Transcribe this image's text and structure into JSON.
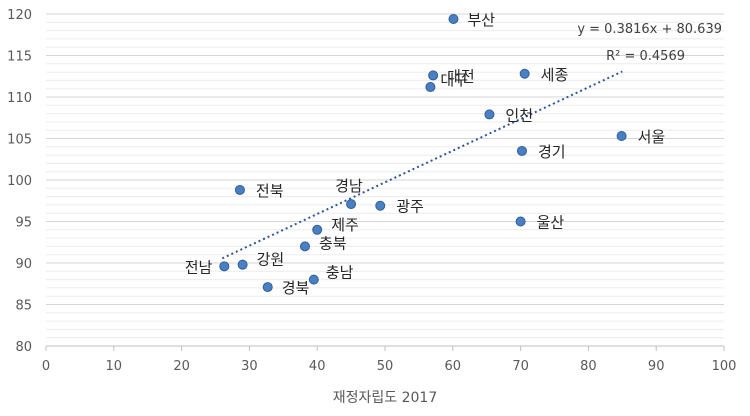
{
  "chart_data": {
    "type": "scatter",
    "xlabel": "재정자립도 2017",
    "ylabel": "",
    "xlim": [
      0,
      100
    ],
    "ylim": [
      80,
      120
    ],
    "x_ticks": [
      0,
      10,
      20,
      30,
      40,
      50,
      60,
      70,
      80,
      90,
      100
    ],
    "y_ticks": [
      80,
      85,
      90,
      95,
      100,
      105,
      110,
      115,
      120
    ],
    "grid": true,
    "colors": {
      "point": "#4a7fc1",
      "trendline": "#2f5597"
    },
    "points": [
      {
        "label": "부산",
        "x": 60.1,
        "y": 119.4
      },
      {
        "label": "대전",
        "x": 57.1,
        "y": 112.6
      },
      {
        "label": "대구",
        "x": 56.7,
        "y": 111.2
      },
      {
        "label": "세종",
        "x": 70.6,
        "y": 112.8
      },
      {
        "label": "인천",
        "x": 65.4,
        "y": 107.9
      },
      {
        "label": "서울",
        "x": 84.9,
        "y": 105.3
      },
      {
        "label": "경기",
        "x": 70.2,
        "y": 103.5
      },
      {
        "label": "전북",
        "x": 28.6,
        "y": 98.8
      },
      {
        "label": "경남",
        "x": 45.0,
        "y": 97.1
      },
      {
        "label": "광주",
        "x": 49.3,
        "y": 96.9
      },
      {
        "label": "울산",
        "x": 70.0,
        "y": 95.0
      },
      {
        "label": "제주",
        "x": 40.0,
        "y": 94.0
      },
      {
        "label": "충북",
        "x": 38.2,
        "y": 92.0
      },
      {
        "label": "전남",
        "x": 26.3,
        "y": 89.6
      },
      {
        "label": "강원",
        "x": 29.0,
        "y": 89.8
      },
      {
        "label": "충남",
        "x": 39.5,
        "y": 88.0
      },
      {
        "label": "경북",
        "x": 32.7,
        "y": 87.1
      }
    ],
    "trendline": {
      "type": "linear",
      "slope": 0.3816,
      "intercept": 80.639,
      "x_range": [
        26.0,
        85.0
      ],
      "equation": "y = 0.3816x + 80.639",
      "r_squared": "R² = 0.4569"
    }
  }
}
